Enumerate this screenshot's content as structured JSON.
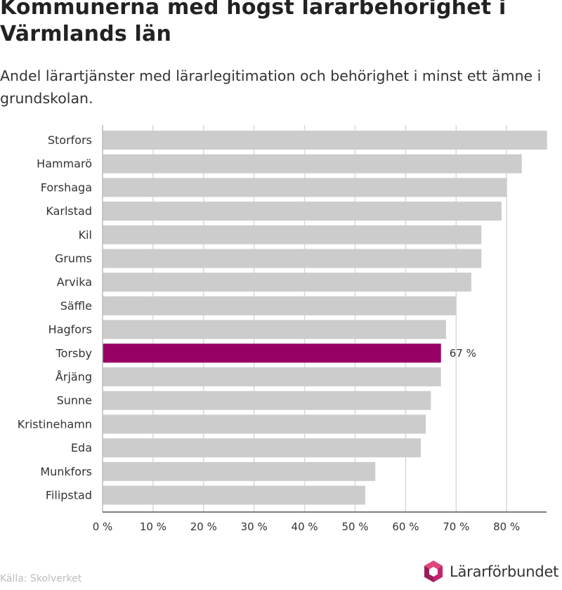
{
  "header": {
    "title": "Kommunerna med högst lärarbehörighet i Värmlands län",
    "subtitle": "Andel lärartjänster med lärarlegitimation och behörighet i minst ett ämne i grundskolan."
  },
  "footer": {
    "source": "Källa: Skolverket",
    "brand": "Lärarförbundet"
  },
  "colors": {
    "bar": "#cccccc",
    "highlight": "#990066",
    "grid": "#d9d9d9",
    "text": "#333333"
  },
  "chart_data": {
    "type": "bar",
    "orientation": "horizontal",
    "title": "Kommunerna med högst lärarbehörighet i Värmlands län",
    "subtitle": "Andel lärartjänster med lärarlegitimation och behörighet i minst ett ämne i grundskolan.",
    "categories": [
      "Storfors",
      "Hammarö",
      "Forshaga",
      "Karlstad",
      "Kil",
      "Grums",
      "Arvika",
      "Säffle",
      "Hagfors",
      "Torsby",
      "Årjäng",
      "Sunne",
      "Kristinehamn",
      "Eda",
      "Munkfors",
      "Filipstad"
    ],
    "values": [
      88,
      83,
      80,
      79,
      75,
      75,
      73,
      70,
      68,
      67,
      67,
      65,
      64,
      63,
      54,
      52
    ],
    "highlight": "Torsby",
    "annotations": [
      {
        "category": "Torsby",
        "label": "67 %"
      }
    ],
    "xlim": [
      0,
      88
    ],
    "xticks": [
      0,
      10,
      20,
      30,
      40,
      50,
      60,
      70,
      80
    ],
    "xtick_labels": [
      "0 %",
      "10 %",
      "20 %",
      "30 %",
      "40 %",
      "50 %",
      "60 %",
      "70 %",
      "80 %"
    ],
    "xlabel": "",
    "ylabel": "",
    "grid": true
  }
}
